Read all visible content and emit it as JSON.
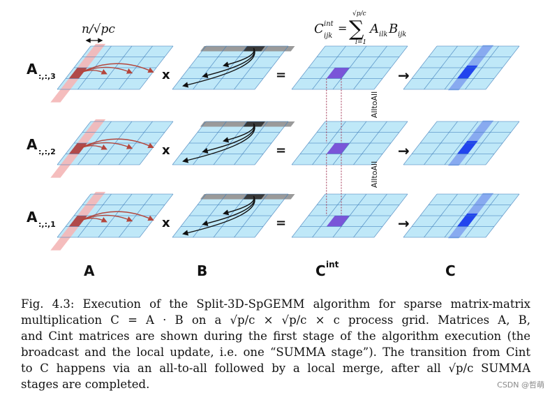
{
  "figure": {
    "n_over_sqrt_pc": "n/√pc",
    "formula": {
      "lhs": "C",
      "lhs_sup": "int",
      "lhs_sub": "ijk",
      "equals": "=",
      "sum_upper": "√p/c",
      "sum_lower": "l=1",
      "term": "A",
      "term_sub": "ilk",
      "term2": "B",
      "term2_sub": "ijk"
    },
    "row_labels": [
      {
        "base": "A",
        "sub": ":,:,3"
      },
      {
        "base": "A",
        "sub": ":,:,2"
      },
      {
        "base": "A",
        "sub": ":,:,1"
      }
    ],
    "times_symbol": "x",
    "equals_symbol": "=",
    "arrow_symbol": "→",
    "alltoall_label": "AlltoAll",
    "column_labels": {
      "a": "A",
      "b": "B",
      "cint_base": "C",
      "cint_sup": "int",
      "c": "C"
    },
    "colors": {
      "grid_fill": "#bfe8f8",
      "grid_line": "#3a7ab8",
      "a_strip": "#f4b6b6",
      "a_cell": "#b04a4a",
      "b_strip": "#9a9a9a",
      "b_cell": "#3a3a3a",
      "c_strip": "#88aaf0",
      "c_cell": "#2244ee",
      "cint_cell": "#7a55d8",
      "arrow_red": "#b4463c"
    }
  },
  "caption": {
    "lines": [
      "Fig. 4.3: Execution of the Split-3D-SpGEMM algorithm for sparse matrix-matrix",
      "multiplication C = A · B on a √p/c × √p/c × c process grid. Matrices A, B,",
      "and Cint matrices are shown during the first stage of the algorithm execution (the",
      "broadcast and the local update, i.e. one “SUMMA stage”). The transition from Cint",
      "to C happens via an all-to-all followed by a local merge, after all √p/c SUMMA",
      "stages are completed."
    ]
  },
  "watermark": "CSDN @哲萌"
}
